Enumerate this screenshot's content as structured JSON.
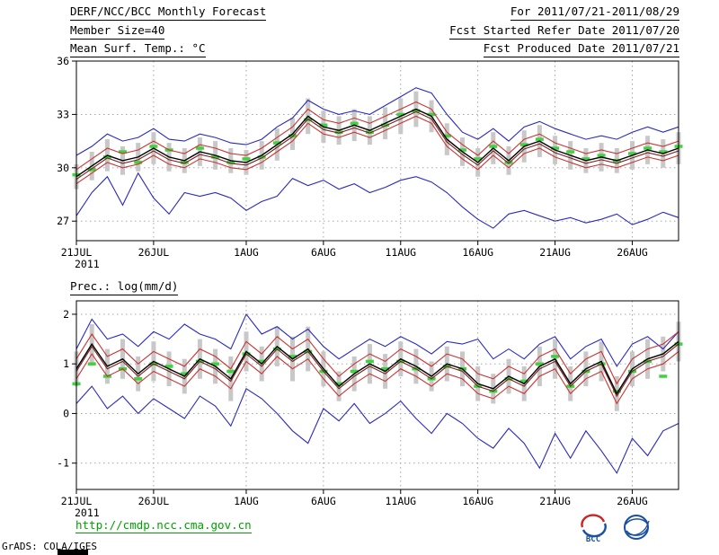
{
  "header": {
    "title": "DERF/NCC/BCC Monthly Forecast",
    "period": "For 2011/07/21-2011/08/29",
    "member_size": "Member Size=40",
    "refer_date": "Fcst Started Refer Date 2011/07/20",
    "produced_date": "Fcst Produced Date 2011/07/21"
  },
  "colors": {
    "grid": "#9a9a9a",
    "frame": "#000000",
    "blue_line": "#2a2ac0",
    "red_line": "#cc3333",
    "dark_red_line": "#7a1f1f",
    "mean_black": "#000000",
    "dash_green": "#3ed23e",
    "bar_gray": "#c8c8c8",
    "link_green": "#00a000",
    "logo_blue": "#1a4fa0",
    "logo_red": "#cc2222"
  },
  "chart_data": [
    {
      "name": "mean-surface-temperature",
      "type": "line",
      "title": "Mean Surf. Temp.: °C",
      "xlabel": "",
      "ylabel": "",
      "ylim": [
        25.9,
        36
      ],
      "y_ticks": [
        36,
        33,
        30,
        27
      ],
      "n_days": 40,
      "x_year": "2011",
      "x_ticks": [
        {
          "day": 0,
          "label": "21JUL"
        },
        {
          "day": 5,
          "label": "26JUL"
        },
        {
          "day": 11,
          "label": "1AUG"
        },
        {
          "day": 16,
          "label": "6AUG"
        },
        {
          "day": 21,
          "label": "11AUG"
        },
        {
          "day": 26,
          "label": "16AUG"
        },
        {
          "day": 31,
          "label": "21AUG"
        },
        {
          "day": 36,
          "label": "26AUG"
        }
      ],
      "bars": {
        "name": "ensemble-spread-bar",
        "color": "#c8c8c8",
        "low": [
          28.8,
          29.3,
          29.8,
          29.6,
          29.8,
          30.2,
          29.8,
          29.7,
          30.1,
          29.9,
          29.7,
          29.6,
          29.9,
          30.4,
          31.0,
          31.9,
          31.4,
          31.3,
          31.5,
          31.3,
          31.6,
          31.9,
          32.3,
          32.0,
          30.7,
          30.1,
          29.5,
          30.2,
          29.6,
          30.3,
          30.6,
          30.2,
          29.9,
          29.7,
          29.8,
          29.7,
          29.9,
          30.2,
          30.0,
          30.2
        ],
        "high": [
          30.2,
          30.9,
          31.6,
          31.2,
          31.4,
          32.0,
          31.4,
          31.1,
          31.7,
          31.5,
          31.1,
          31.0,
          31.5,
          32.2,
          32.8,
          33.9,
          33.2,
          32.9,
          33.3,
          32.9,
          33.4,
          33.9,
          34.3,
          33.8,
          32.5,
          31.7,
          31.1,
          32.0,
          31.2,
          32.1,
          32.4,
          31.8,
          31.5,
          31.1,
          31.4,
          31.1,
          31.5,
          31.8,
          31.6,
          32.0
        ]
      },
      "dashes": {
        "name": "best-estimate-dash",
        "color": "#3ed23e",
        "values": [
          29.6,
          29.9,
          30.6,
          30.9,
          30.3,
          31.2,
          31.0,
          30.3,
          31.1,
          30.6,
          30.3,
          30.5,
          30.6,
          31.4,
          31.8,
          32.7,
          32.4,
          32.0,
          32.5,
          32.0,
          32.4,
          33.0,
          33.2,
          33.0,
          31.8,
          31.0,
          30.5,
          31.2,
          30.3,
          31.3,
          31.6,
          31.1,
          30.9,
          30.5,
          30.7,
          30.4,
          30.8,
          31.1,
          30.9,
          31.2
        ]
      },
      "series": [
        {
          "name": "ensemble-max",
          "color": "#2a2ac0",
          "width": 1.1,
          "values": [
            30.7,
            31.2,
            31.9,
            31.5,
            31.7,
            32.2,
            31.6,
            31.5,
            31.9,
            31.7,
            31.4,
            31.3,
            31.6,
            32.3,
            32.8,
            33.8,
            33.3,
            33.0,
            33.2,
            33.0,
            33.5,
            34.0,
            34.5,
            34.2,
            33.0,
            32.0,
            31.6,
            32.2,
            31.5,
            32.3,
            32.6,
            32.2,
            31.9,
            31.6,
            31.8,
            31.6,
            32.0,
            32.3,
            32.0,
            32.3
          ]
        },
        {
          "name": "ensemble-min",
          "color": "#2a2ac0",
          "width": 1.1,
          "values": [
            27.3,
            28.6,
            29.5,
            27.9,
            29.7,
            28.3,
            27.4,
            28.6,
            28.4,
            28.6,
            28.3,
            27.6,
            28.1,
            28.4,
            29.4,
            29.0,
            29.3,
            28.8,
            29.1,
            28.6,
            28.9,
            29.3,
            29.5,
            29.2,
            28.6,
            27.8,
            27.1,
            26.6,
            27.4,
            27.6,
            27.3,
            27.0,
            27.2,
            26.9,
            27.1,
            27.4,
            26.8,
            27.1,
            27.5,
            27.2
          ]
        },
        {
          "name": "upper-std",
          "color": "#cc3333",
          "width": 1.1,
          "values": [
            29.9,
            30.5,
            31.1,
            30.8,
            31.0,
            31.5,
            31.0,
            30.8,
            31.3,
            31.1,
            30.8,
            30.7,
            31.1,
            31.7,
            32.3,
            33.3,
            32.7,
            32.5,
            32.8,
            32.5,
            32.9,
            33.3,
            33.7,
            33.3,
            32.0,
            31.3,
            30.7,
            31.5,
            30.8,
            31.6,
            31.9,
            31.4,
            31.1,
            30.8,
            31.0,
            30.8,
            31.1,
            31.4,
            31.2,
            31.5
          ]
        },
        {
          "name": "lower-std",
          "color": "#cc3333",
          "width": 1.1,
          "values": [
            29.1,
            29.7,
            30.3,
            30.0,
            30.2,
            30.7,
            30.2,
            30.0,
            30.5,
            30.3,
            30.0,
            29.9,
            30.3,
            30.9,
            31.5,
            32.5,
            31.9,
            31.7,
            32.0,
            31.7,
            32.1,
            32.5,
            32.9,
            32.5,
            31.2,
            30.5,
            29.9,
            30.7,
            30.0,
            30.8,
            31.1,
            30.6,
            30.3,
            30.0,
            30.2,
            30.0,
            30.3,
            30.6,
            30.4,
            30.7
          ]
        },
        {
          "name": "ensemble-median",
          "color": "#7a1f1f",
          "width": 1.1,
          "values": [
            29.35,
            29.95,
            30.55,
            30.25,
            30.45,
            30.95,
            30.45,
            30.25,
            30.75,
            30.55,
            30.25,
            30.15,
            30.55,
            31.15,
            31.75,
            32.75,
            32.15,
            31.95,
            32.25,
            31.95,
            32.35,
            32.75,
            33.15,
            32.75,
            31.45,
            30.75,
            30.15,
            30.95,
            30.25,
            31.05,
            31.35,
            30.85,
            30.55,
            30.25,
            30.45,
            30.25,
            30.55,
            30.85,
            30.65,
            30.95
          ]
        },
        {
          "name": "ensemble-mean",
          "color": "#000000",
          "width": 1.4,
          "values": [
            29.5,
            30.1,
            30.7,
            30.4,
            30.6,
            31.1,
            30.6,
            30.4,
            30.9,
            30.7,
            30.4,
            30.3,
            30.7,
            31.3,
            31.9,
            32.9,
            32.3,
            32.1,
            32.4,
            32.1,
            32.5,
            32.9,
            33.3,
            32.9,
            31.6,
            30.9,
            30.3,
            31.1,
            30.4,
            31.2,
            31.5,
            31.0,
            30.7,
            30.4,
            30.6,
            30.4,
            30.7,
            31.0,
            30.8,
            31.1
          ]
        }
      ]
    },
    {
      "name": "precipitation",
      "type": "line",
      "title": "Prec.: log(mm/d)",
      "xlabel": "",
      "ylabel": "",
      "ylim": [
        -1.53,
        2.27
      ],
      "y_ticks": [
        2,
        1,
        0,
        -1
      ],
      "n_days": 40,
      "x_year": "2011",
      "x_ticks": [
        {
          "day": 0,
          "label": "21JUL"
        },
        {
          "day": 5,
          "label": "26JUL"
        },
        {
          "day": 11,
          "label": "1AUG"
        },
        {
          "day": 16,
          "label": "6AUG"
        },
        {
          "day": 21,
          "label": "11AUG"
        },
        {
          "day": 26,
          "label": "16AUG"
        },
        {
          "day": 31,
          "label": "21AUG"
        },
        {
          "day": 36,
          "label": "26AUG"
        }
      ],
      "bars": {
        "name": "ensemble-spread-bar",
        "color": "#c8c8c8",
        "low": [
          0.55,
          1.0,
          0.6,
          0.7,
          0.45,
          0.65,
          0.55,
          0.4,
          0.7,
          0.6,
          0.25,
          0.85,
          0.65,
          0.95,
          0.65,
          0.85,
          0.55,
          0.25,
          0.45,
          0.6,
          0.5,
          0.75,
          0.6,
          0.45,
          0.65,
          0.55,
          0.25,
          0.2,
          0.4,
          0.25,
          0.55,
          0.7,
          0.25,
          0.55,
          0.65,
          0.05,
          0.55,
          0.7,
          0.85,
          1.05
        ],
        "high": [
          1.25,
          1.8,
          1.3,
          1.5,
          1.15,
          1.45,
          1.25,
          1.1,
          1.5,
          1.3,
          1.15,
          1.65,
          1.35,
          1.75,
          1.55,
          1.75,
          1.25,
          0.85,
          1.15,
          1.4,
          1.2,
          1.45,
          1.3,
          1.05,
          1.35,
          1.25,
          0.95,
          0.8,
          1.1,
          0.95,
          1.35,
          1.5,
          0.95,
          1.25,
          1.45,
          0.75,
          1.25,
          1.5,
          1.55,
          1.85
        ]
      },
      "dashes": {
        "name": "best-estimate-dash",
        "color": "#3ed23e",
        "values": [
          0.6,
          1.0,
          0.75,
          0.9,
          0.7,
          1.0,
          0.95,
          0.8,
          1.05,
          1.0,
          0.85,
          1.2,
          1.05,
          1.3,
          1.15,
          1.25,
          0.85,
          0.6,
          0.85,
          1.05,
          0.9,
          1.05,
          0.9,
          0.7,
          0.95,
          0.9,
          0.55,
          0.45,
          0.7,
          0.65,
          1.0,
          1.15,
          0.55,
          0.85,
          1.0,
          0.45,
          0.85,
          1.05,
          0.75,
          1.4
        ]
      },
      "series": [
        {
          "name": "ensemble-max",
          "color": "#2a2ac0",
          "width": 1.1,
          "values": [
            1.3,
            1.9,
            1.5,
            1.6,
            1.35,
            1.65,
            1.5,
            1.8,
            1.6,
            1.5,
            1.3,
            2.0,
            1.6,
            1.75,
            1.5,
            1.7,
            1.35,
            1.1,
            1.3,
            1.5,
            1.35,
            1.55,
            1.4,
            1.2,
            1.45,
            1.4,
            1.5,
            1.1,
            1.3,
            1.1,
            1.4,
            1.55,
            1.1,
            1.35,
            1.5,
            0.95,
            1.4,
            1.55,
            1.3,
            1.65
          ]
        },
        {
          "name": "ensemble-min",
          "color": "#2a2ac0",
          "width": 1.1,
          "values": [
            0.2,
            0.55,
            0.1,
            0.35,
            0.0,
            0.3,
            0.1,
            -0.1,
            0.35,
            0.15,
            -0.25,
            0.5,
            0.3,
            0.0,
            -0.35,
            -0.6,
            0.1,
            -0.15,
            0.2,
            -0.2,
            0.0,
            0.25,
            -0.1,
            -0.4,
            0.0,
            -0.2,
            -0.5,
            -0.7,
            -0.3,
            -0.6,
            -1.1,
            -0.4,
            -0.9,
            -0.35,
            -0.75,
            -1.2,
            -0.5,
            -0.85,
            -0.35,
            -0.2
          ]
        },
        {
          "name": "upper-std",
          "color": "#cc3333",
          "width": 1.1,
          "values": [
            1.1,
            1.6,
            1.15,
            1.3,
            1.0,
            1.25,
            1.1,
            0.95,
            1.3,
            1.15,
            0.9,
            1.45,
            1.2,
            1.55,
            1.3,
            1.5,
            1.1,
            0.75,
            1.0,
            1.2,
            1.05,
            1.3,
            1.15,
            0.95,
            1.2,
            1.1,
            0.8,
            0.7,
            0.95,
            0.8,
            1.15,
            1.3,
            0.8,
            1.1,
            1.25,
            0.6,
            1.1,
            1.3,
            1.4,
            1.65
          ]
        },
        {
          "name": "lower-std",
          "color": "#cc3333",
          "width": 1.1,
          "values": [
            0.7,
            1.2,
            0.75,
            0.9,
            0.6,
            0.85,
            0.7,
            0.55,
            0.9,
            0.75,
            0.5,
            1.05,
            0.8,
            1.15,
            0.9,
            1.1,
            0.7,
            0.35,
            0.6,
            0.8,
            0.65,
            0.9,
            0.75,
            0.55,
            0.8,
            0.7,
            0.4,
            0.3,
            0.55,
            0.4,
            0.75,
            0.9,
            0.4,
            0.7,
            0.85,
            0.2,
            0.7,
            0.9,
            1.0,
            1.25
          ]
        },
        {
          "name": "ensemble-median",
          "color": "#7a1f1f",
          "width": 1.1,
          "values": [
            0.85,
            1.35,
            0.9,
            1.05,
            0.75,
            1.0,
            0.85,
            0.7,
            1.05,
            0.9,
            0.65,
            1.2,
            0.95,
            1.3,
            1.05,
            1.25,
            0.85,
            0.5,
            0.75,
            0.95,
            0.8,
            1.05,
            0.9,
            0.7,
            0.95,
            0.85,
            0.55,
            0.45,
            0.7,
            0.55,
            0.9,
            1.05,
            0.55,
            0.85,
            1.0,
            0.35,
            0.85,
            1.05,
            1.15,
            1.4
          ]
        },
        {
          "name": "ensemble-mean",
          "color": "#000000",
          "width": 1.4,
          "values": [
            0.9,
            1.4,
            0.95,
            1.1,
            0.8,
            1.05,
            0.9,
            0.75,
            1.1,
            0.95,
            0.7,
            1.25,
            1.0,
            1.35,
            1.1,
            1.3,
            0.9,
            0.55,
            0.8,
            1.0,
            0.85,
            1.1,
            0.95,
            0.75,
            1.0,
            0.9,
            0.6,
            0.5,
            0.75,
            0.6,
            0.95,
            1.1,
            0.6,
            0.9,
            1.05,
            0.4,
            0.9,
            1.1,
            1.2,
            1.45
          ]
        }
      ]
    }
  ],
  "footer": {
    "url": "http://cmdp.ncc.cma.gov.cn",
    "logos": [
      {
        "id": "bcc",
        "label": "BCC"
      },
      {
        "id": "cma-ncc",
        "label": ""
      }
    ],
    "stamp": "GrADS: COLA/IGES"
  }
}
